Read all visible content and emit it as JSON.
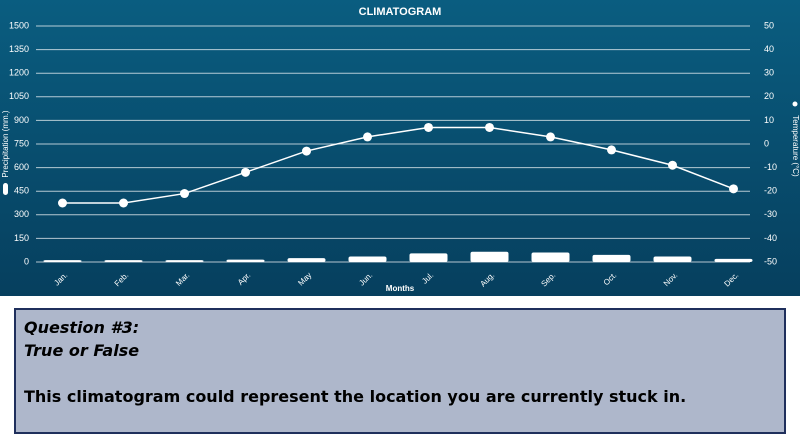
{
  "chart_data": {
    "type": "combo",
    "title": "CLIMATOGRAM",
    "x_label": "Months",
    "y_label": "Precipitation (mm.)",
    "y2_label": "Temperature (°C)",
    "categories": [
      "Jan.",
      "Feb.",
      "Mar.",
      "Apr.",
      "May",
      "Jun.",
      "Jul.",
      "Aug.",
      "Sep.",
      "Oct.",
      "Nov.",
      "Dec."
    ],
    "series": [
      {
        "type": "bar",
        "color": "#ffffff",
        "values": [
          12,
          12,
          12,
          15,
          25,
          35,
          55,
          65,
          60,
          45,
          35,
          20
        ]
      },
      {
        "type": "line",
        "axis": "y2",
        "color": "#ffffff",
        "values": [
          -25,
          -25,
          -21,
          -12,
          -3,
          3,
          7,
          7,
          3,
          -2.5,
          -9,
          -19
        ]
      }
    ],
    "ylim": [
      0,
      1500
    ],
    "yticks": [
      0,
      150,
      300,
      450,
      600,
      750,
      900,
      1050,
      1200,
      1350,
      1500
    ],
    "y2lim": [
      -50,
      50
    ],
    "y2ticks": [
      -50,
      -40,
      -30,
      -20,
      -10,
      0,
      10,
      20,
      30,
      40,
      50
    ],
    "grid": true
  },
  "question": {
    "heading": "Question #3:",
    "subheading": "True or False",
    "text": "This climatogram could represent the location you are currently stuck in."
  }
}
